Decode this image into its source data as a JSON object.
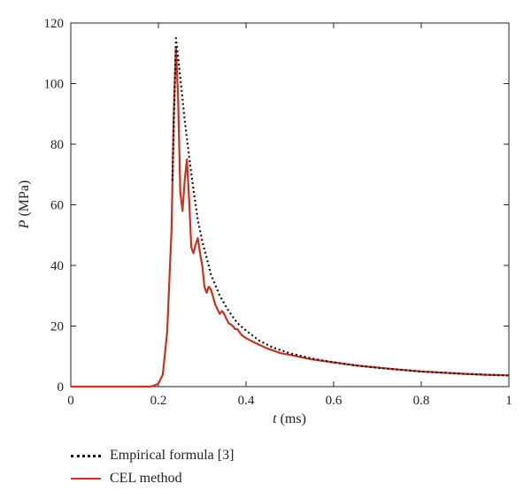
{
  "chart_data": {
    "type": "line",
    "title": "",
    "xlabel": {
      "symbol": "t",
      "unit": " (ms)"
    },
    "ylabel": {
      "symbol": "P",
      "unit": " (MPa)"
    },
    "xlim": [
      0,
      1
    ],
    "ylim": [
      0,
      120
    ],
    "xticks": [
      0,
      0.2,
      0.4,
      0.6,
      0.8,
      1
    ],
    "xtick_labels": [
      "0",
      "0.2",
      "0.4",
      "0.6",
      "0.8",
      "1"
    ],
    "yticks": [
      0,
      20,
      40,
      60,
      80,
      100,
      120
    ],
    "ytick_labels": [
      "0",
      "20",
      "40",
      "60",
      "80",
      "100",
      "120"
    ],
    "grid": false,
    "legend_position": "bottom-left, below plot",
    "series": [
      {
        "name": "Empirical formula [3]",
        "color": "#111111",
        "style": "dotted",
        "x": [
          0.232,
          0.24,
          0.25,
          0.26,
          0.27,
          0.28,
          0.29,
          0.3,
          0.32,
          0.34,
          0.36,
          0.38,
          0.4,
          0.43,
          0.46,
          0.5,
          0.55,
          0.6,
          0.65,
          0.7,
          0.75,
          0.8,
          0.85,
          0.9,
          0.95,
          1.0
        ],
        "y": [
          68,
          115,
          102,
          88,
          76,
          65,
          55,
          48,
          37,
          30,
          25,
          21,
          18.5,
          15.2,
          13,
          11,
          9.3,
          8,
          7,
          6.2,
          5.6,
          5,
          4.6,
          4.2,
          3.9,
          3.7
        ]
      },
      {
        "name": "CEL method",
        "color": "#c8321e",
        "style": "solid",
        "x": [
          0,
          0.18,
          0.19,
          0.2,
          0.21,
          0.22,
          0.23,
          0.235,
          0.24,
          0.245,
          0.25,
          0.255,
          0.26,
          0.265,
          0.27,
          0.275,
          0.28,
          0.285,
          0.29,
          0.295,
          0.3,
          0.305,
          0.31,
          0.315,
          0.32,
          0.33,
          0.34,
          0.345,
          0.35,
          0.36,
          0.37,
          0.375,
          0.38,
          0.39,
          0.4,
          0.42,
          0.45,
          0.48,
          0.5,
          0.55,
          0.6,
          0.65,
          0.7,
          0.75,
          0.8,
          0.85,
          0.9,
          0.95,
          1.0
        ],
        "y": [
          0,
          0,
          0.3,
          1,
          4,
          18,
          52,
          90,
          112,
          95,
          64,
          58,
          68,
          75,
          62,
          46,
          44,
          47,
          49,
          44,
          40,
          33,
          31,
          33,
          32,
          27,
          24,
          25,
          24,
          21,
          20,
          19,
          19,
          17,
          16,
          14.5,
          12.5,
          11,
          10.5,
          9,
          8,
          7,
          6.3,
          5.6,
          5,
          4.6,
          4.2,
          3.9,
          3.7
        ]
      }
    ]
  }
}
